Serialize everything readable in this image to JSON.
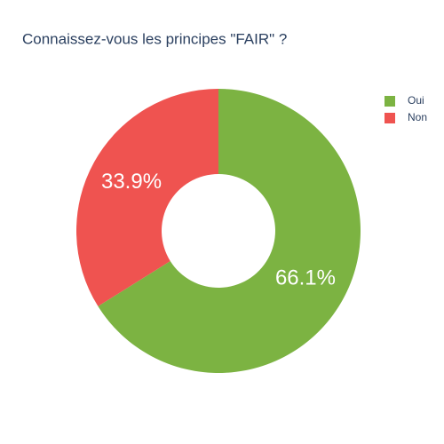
{
  "chart_data": {
    "type": "pie",
    "title": "Connaissez-vous les principes \"FAIR\" ?",
    "categories": [
      "Oui",
      "Non"
    ],
    "values": [
      66.1,
      33.9
    ],
    "value_labels": [
      "66.1%",
      "33.9%"
    ],
    "colors": [
      "#7cb342",
      "#ef5350"
    ],
    "hole": 0.4,
    "legend": "top-right"
  }
}
